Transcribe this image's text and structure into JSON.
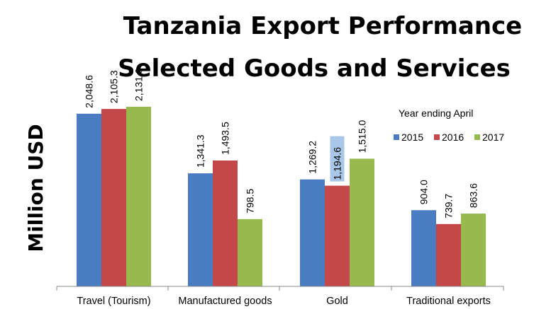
{
  "chart_data": {
    "type": "bar",
    "title": [
      "Tanzania Export Performance",
      "Selected Goods and Services"
    ],
    "ylabel": "Million USD",
    "xlabel": "",
    "categories": [
      "Travel (Tourism)",
      "Manufactured goods",
      "Gold",
      "Traditional exports"
    ],
    "legend_title": "Year ending April",
    "legend_placement": "right",
    "grid": false,
    "ylim": [
      0,
      2300
    ],
    "series": [
      {
        "name": "2015",
        "color": "#4a7cc2",
        "values": [
          2048.6,
          1341.3,
          1269.2,
          904.0
        ],
        "labels": [
          "2,048.6",
          "1,341.3",
          "1,269.2",
          "904.0"
        ]
      },
      {
        "name": "2016",
        "color": "#c4484a",
        "values": [
          2105.3,
          1493.5,
          1194.6,
          739.7
        ],
        "labels": [
          "2,105.3",
          "1,493.5",
          "1,194.6",
          "739.7"
        ]
      },
      {
        "name": "2017",
        "color": "#97b94d",
        "values": [
          2131.0,
          798.5,
          1515.0,
          863.6
        ],
        "labels": [
          "2,131.0",
          "798.5",
          "1,515.0",
          "863.6"
        ]
      }
    ],
    "highlight_label": {
      "series": 1,
      "category": 2,
      "color": "#a9c7e8"
    }
  }
}
